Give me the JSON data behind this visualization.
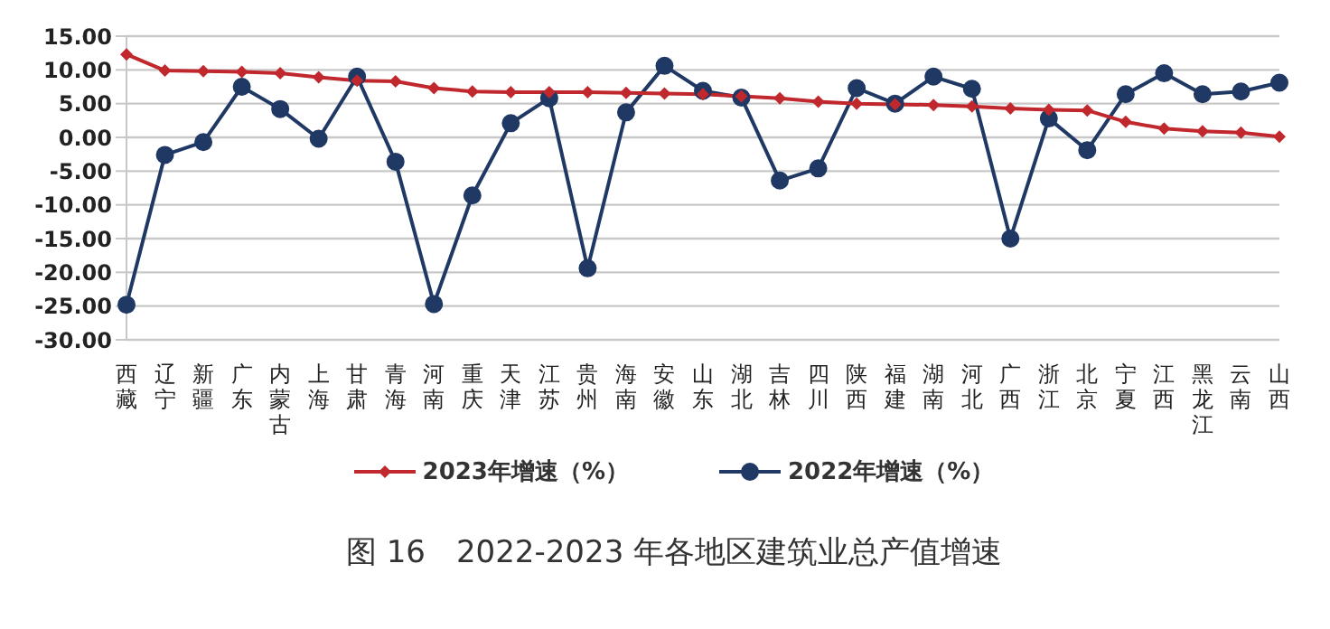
{
  "chart_data": {
    "type": "line",
    "title": "图 16　2022-2023 年各地区建筑业总产值增速",
    "categories": [
      "西藏",
      "辽宁",
      "新疆",
      "广东",
      "内蒙古",
      "上海",
      "甘肃",
      "青海",
      "河南",
      "重庆",
      "天津",
      "江苏",
      "贵州",
      "海南",
      "安徽",
      "山东",
      "湖北",
      "吉林",
      "四川",
      "陕西",
      "福建",
      "湖南",
      "河北",
      "广西",
      "浙江",
      "北京",
      "宁夏",
      "江西",
      "黑龙江",
      "云南",
      "山西"
    ],
    "series": [
      {
        "name": "2023年增速（%）",
        "color": "#c0282d",
        "marker": "diamond",
        "values": [
          12.3,
          9.9,
          9.8,
          9.7,
          9.5,
          8.9,
          8.4,
          8.3,
          7.3,
          6.8,
          6.7,
          6.7,
          6.7,
          6.6,
          6.5,
          6.4,
          6.1,
          5.8,
          5.3,
          5.0,
          4.9,
          4.8,
          4.6,
          4.3,
          4.1,
          4.0,
          2.3,
          1.3,
          0.9,
          0.7,
          0.1
        ]
      },
      {
        "name": "2022年增速（%）",
        "color": "#1f3864",
        "marker": "circle",
        "values": [
          -24.8,
          -2.6,
          -0.7,
          7.5,
          4.2,
          -0.2,
          9.0,
          -3.6,
          -24.7,
          -8.6,
          2.1,
          5.8,
          -19.4,
          3.7,
          10.6,
          6.9,
          5.9,
          -6.4,
          -4.6,
          7.3,
          5.0,
          9.0,
          7.2,
          -15.0,
          2.8,
          -1.9,
          6.4,
          9.5,
          6.4,
          6.8,
          8.1
        ]
      }
    ],
    "ylim": [
      -30,
      15
    ],
    "yticks": [
      {
        "value": -30,
        "label": "-30.00"
      },
      {
        "value": -25,
        "label": "-25.00"
      },
      {
        "value": -20,
        "label": "-20.00"
      },
      {
        "value": -15,
        "label": "-15.00"
      },
      {
        "value": -10,
        "label": "-10.00"
      },
      {
        "value": -5,
        "label": "-5.00"
      },
      {
        "value": 0,
        "label": "0.00"
      },
      {
        "value": 5,
        "label": "5.00"
      },
      {
        "value": 10,
        "label": "10.00"
      },
      {
        "value": 15,
        "label": "15.00"
      }
    ],
    "grid": "y",
    "legend": "bottom",
    "line_style": "solid"
  }
}
